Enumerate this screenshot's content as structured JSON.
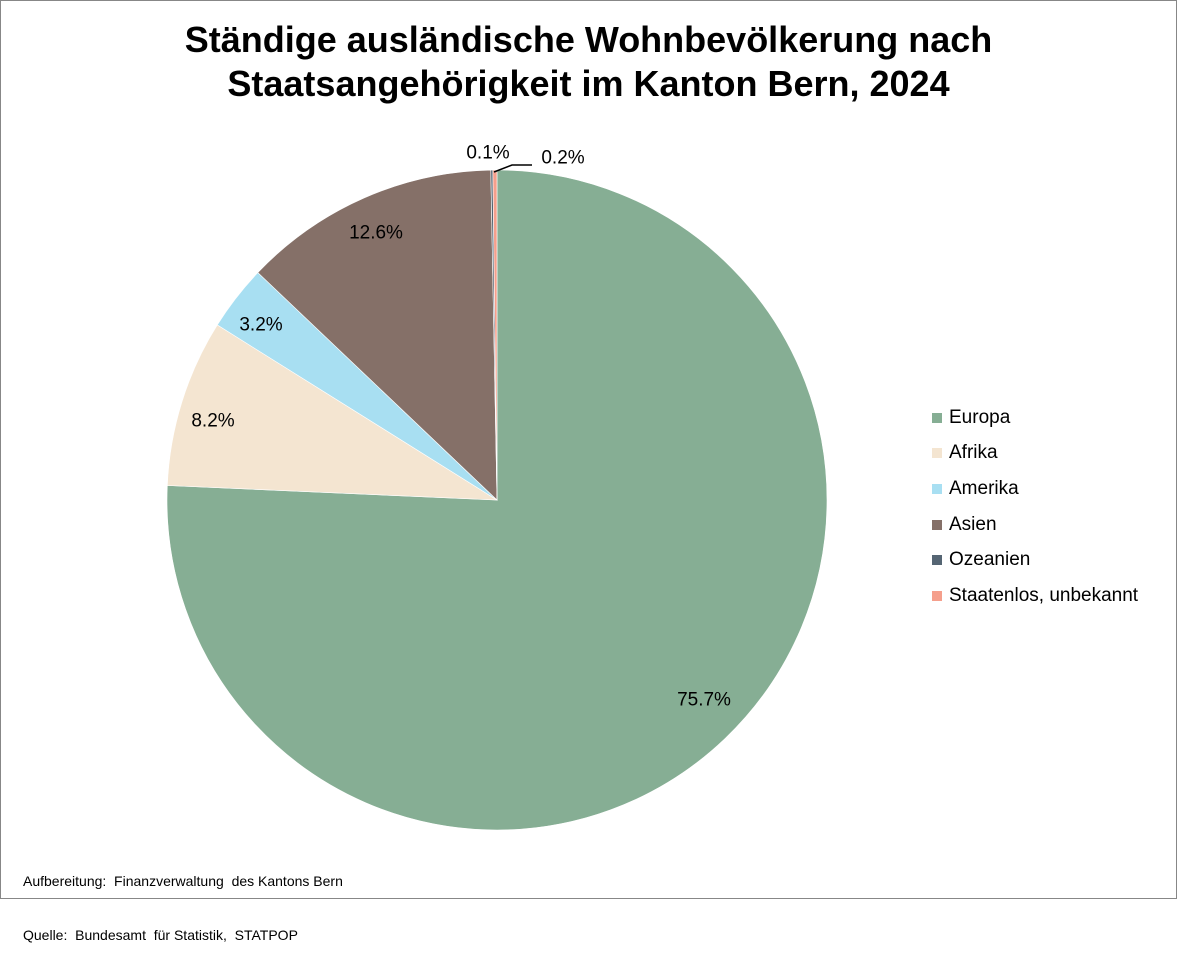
{
  "chart_data": {
    "type": "pie",
    "title": [
      "Ständige ausländische Wohnbevölkerung nach",
      "Staatsangehörigkeit im Kanton Bern, 2024"
    ],
    "unit": "%",
    "start": "12 o'clock",
    "direction": "clockwise",
    "legend_position": "right",
    "slices": [
      {
        "name": "Europa",
        "value": 75.7,
        "label": "75.7%",
        "color": "#86AE94"
      },
      {
        "name": "Afrika",
        "value": 8.2,
        "label": "8.2%",
        "color": "#F4E5D1"
      },
      {
        "name": "Amerika",
        "value": 3.2,
        "label": "3.2%",
        "color": "#A8DFF2"
      },
      {
        "name": "Asien",
        "value": 12.6,
        "label": "12.6%",
        "color": "#857068"
      },
      {
        "name": "Ozeanien",
        "value": 0.1,
        "label": "0.1%",
        "color": "#556573"
      },
      {
        "name": "Staatenlos, unbekannt",
        "value": 0.2,
        "label": "0.2%",
        "color": "#F59F8C"
      }
    ]
  },
  "footer": {
    "line1": "Aufbereitung:  Finanzverwaltung  des Kantons Bern",
    "line2": "Quelle:  Bundesamt  für Statistik,  STATPOP"
  }
}
